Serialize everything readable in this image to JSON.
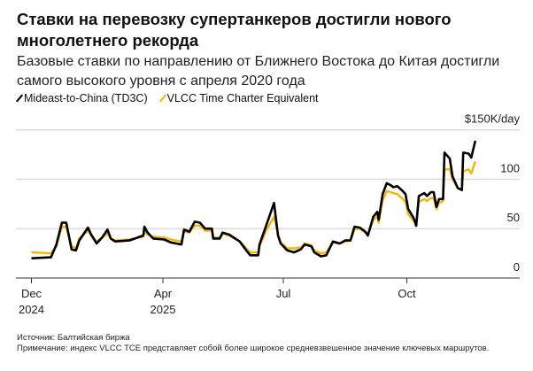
{
  "header": {
    "title": "Ставки на перевозку супертанкеров достигли нового многолетнего рекорда",
    "subtitle": "Базовые ставки по направлению от Ближнего Востока до Китая достигли самого высокого уровня с апреля 2020 года"
  },
  "footer": {
    "source": "Источник: Балтийская биржа",
    "note": "Примечание: индекс VLCC TCE представляет собой более широкое средневзвешенное значение ключевых маршрутов."
  },
  "chart_data": {
    "type": "line",
    "title": "Ставки на перевозку супертанкеров достигли нового многолетнего рекорда",
    "ylabel": "$150K/day",
    "ylim": [
      0,
      150
    ],
    "yticks": [
      {
        "value": 0,
        "label": "0"
      },
      {
        "value": 50,
        "label": "50"
      },
      {
        "value": 100,
        "label": "100"
      },
      {
        "value": 150,
        "label": "$150K/day"
      }
    ],
    "xticks": [
      {
        "date": "2024-12-01",
        "label": "Dec",
        "sublabel": "2024"
      },
      {
        "date": "2025-04-01",
        "label": "Apr",
        "sublabel": "2025"
      },
      {
        "date": "2025-07-01",
        "label": "Jul",
        "sublabel": ""
      },
      {
        "date": "2025-10-01",
        "label": "Oct",
        "sublabel": ""
      }
    ],
    "grid": true,
    "legend_position": "top-left",
    "x": [
      "2024-12-01",
      "2024-12-19",
      "2024-12-24",
      "2024-12-29",
      "2025-01-02",
      "2025-01-07",
      "2025-01-11",
      "2025-01-14",
      "2025-01-22",
      "2025-01-25",
      "2025-01-30",
      "2025-02-04",
      "2025-02-09",
      "2025-02-12",
      "2025-02-16",
      "2025-03-01",
      "2025-03-14",
      "2025-03-15",
      "2025-03-18",
      "2025-03-23",
      "2025-04-02",
      "2025-04-07",
      "2025-04-15",
      "2025-04-17",
      "2025-04-21",
      "2025-04-25",
      "2025-04-29",
      "2025-05-03",
      "2025-05-08",
      "2025-05-09",
      "2025-05-14",
      "2025-05-16",
      "2025-05-21",
      "2025-05-29",
      "2025-06-03",
      "2025-06-06",
      "2025-06-12",
      "2025-06-13",
      "2025-06-18",
      "2025-06-24",
      "2025-06-27",
      "2025-06-29",
      "2025-07-04",
      "2025-07-09",
      "2025-07-14",
      "2025-07-17",
      "2025-07-22",
      "2025-07-24",
      "2025-07-29",
      "2025-08-02",
      "2025-08-07",
      "2025-08-12",
      "2025-08-16",
      "2025-08-20",
      "2025-08-23",
      "2025-08-27",
      "2025-08-31",
      "2025-09-02",
      "2025-09-06",
      "2025-09-09",
      "2025-09-10",
      "2025-09-13",
      "2025-09-16",
      "2025-09-19",
      "2025-09-21",
      "2025-09-24",
      "2025-09-28",
      "2025-09-30",
      "2025-10-02",
      "2025-10-06",
      "2025-10-08",
      "2025-10-10",
      "2025-10-14",
      "2025-10-16",
      "2025-10-19",
      "2025-10-21",
      "2025-10-23",
      "2025-10-25",
      "2025-10-28",
      "2025-10-29",
      "2025-11-02",
      "2025-11-04",
      "2025-11-08",
      "2025-11-11",
      "2025-11-12",
      "2025-11-16",
      "2025-11-18",
      "2025-11-21"
    ],
    "series": [
      {
        "name": "Mideast-to-China (TD3C)",
        "color": "#000000",
        "values": [
          20,
          21,
          34,
          56,
          56,
          29,
          28,
          38,
          51,
          44,
          35,
          41,
          49,
          40,
          37,
          38,
          43,
          52,
          46,
          40,
          39,
          36,
          34,
          49,
          47,
          57,
          56,
          50,
          50,
          40,
          40,
          46,
          44,
          37,
          28,
          23,
          23,
          34,
          53,
          76,
          43,
          35,
          28,
          26,
          29,
          34,
          32,
          26,
          22,
          23,
          37,
          35,
          38,
          38,
          52,
          51,
          47,
          43,
          62,
          67,
          59,
          85,
          96,
          94,
          92,
          93,
          88,
          85,
          70,
          61,
          53,
          83,
          86,
          83,
          87,
          87,
          72,
          80,
          80,
          127,
          121,
          103,
          91,
          89,
          127,
          126,
          122,
          139
        ]
      },
      {
        "name": "VLCC Time Charter Equivalent",
        "color": "#f2b705",
        "values": [
          26,
          25,
          32,
          52,
          52,
          32,
          30,
          40,
          48,
          43,
          37,
          41,
          45,
          40,
          38,
          39,
          42,
          47,
          44,
          42,
          41,
          39,
          37,
          47,
          46,
          53,
          53,
          48,
          48,
          41,
          41,
          45,
          43,
          37,
          30,
          26,
          26,
          32,
          48,
          62,
          45,
          36,
          30,
          30,
          31,
          35,
          33,
          28,
          25,
          26,
          36,
          35,
          37,
          38,
          49,
          50,
          46,
          43,
          59,
          62,
          56,
          79,
          88,
          87,
          86,
          85,
          80,
          77,
          65,
          58,
          56,
          77,
          80,
          78,
          81,
          81,
          70,
          76,
          78,
          110,
          110,
          100,
          91,
          90,
          108,
          110,
          106,
          118
        ]
      }
    ]
  }
}
